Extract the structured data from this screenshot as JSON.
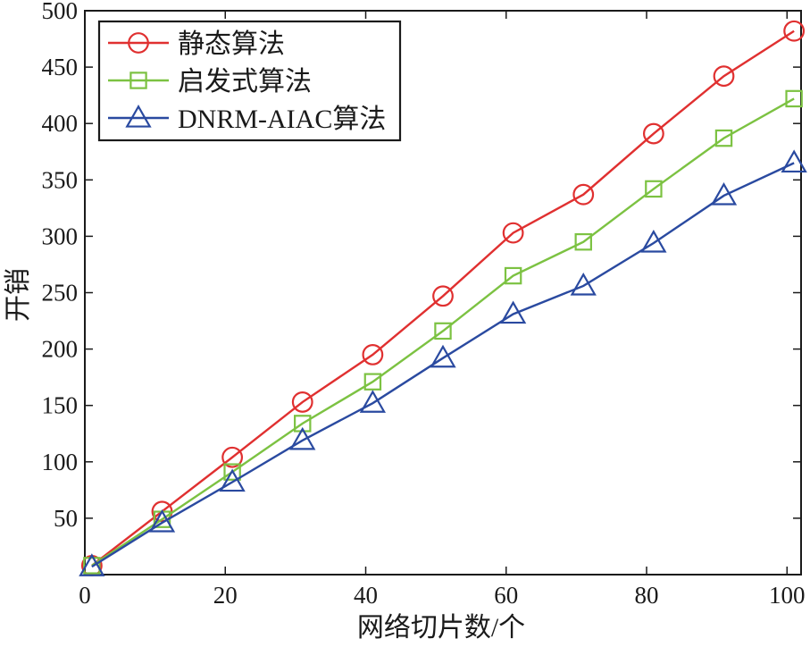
{
  "chart_data": {
    "type": "line",
    "title": "",
    "xlabel": "网络切片数/个",
    "ylabel": "开销",
    "xlim": [
      0,
      102
    ],
    "ylim": [
      0,
      500
    ],
    "xticks": [
      0,
      20,
      40,
      60,
      80,
      100
    ],
    "yticks": [
      50,
      100,
      150,
      200,
      250,
      300,
      350,
      400,
      450,
      500
    ],
    "grid": false,
    "legend": "top-left",
    "x": [
      1,
      11,
      21,
      31,
      41,
      51,
      61,
      71,
      81,
      91,
      101
    ],
    "series": [
      {
        "name": "静态算法",
        "color": "#e03030",
        "marker": "circle",
        "values": [
          8,
          56,
          104,
          153,
          195,
          247,
          303,
          337,
          391,
          442,
          482
        ]
      },
      {
        "name": "启发式算法",
        "color": "#7cc242",
        "marker": "square",
        "values": [
          8,
          49,
          91,
          134,
          171,
          216,
          265,
          295,
          342,
          387,
          422
        ]
      },
      {
        "name": "DNRM-AIAC算法",
        "color": "#2a4aa0",
        "marker": "triangle",
        "values": [
          7,
          46,
          82,
          119,
          152,
          192,
          231,
          256,
          294,
          336,
          365
        ]
      }
    ]
  }
}
